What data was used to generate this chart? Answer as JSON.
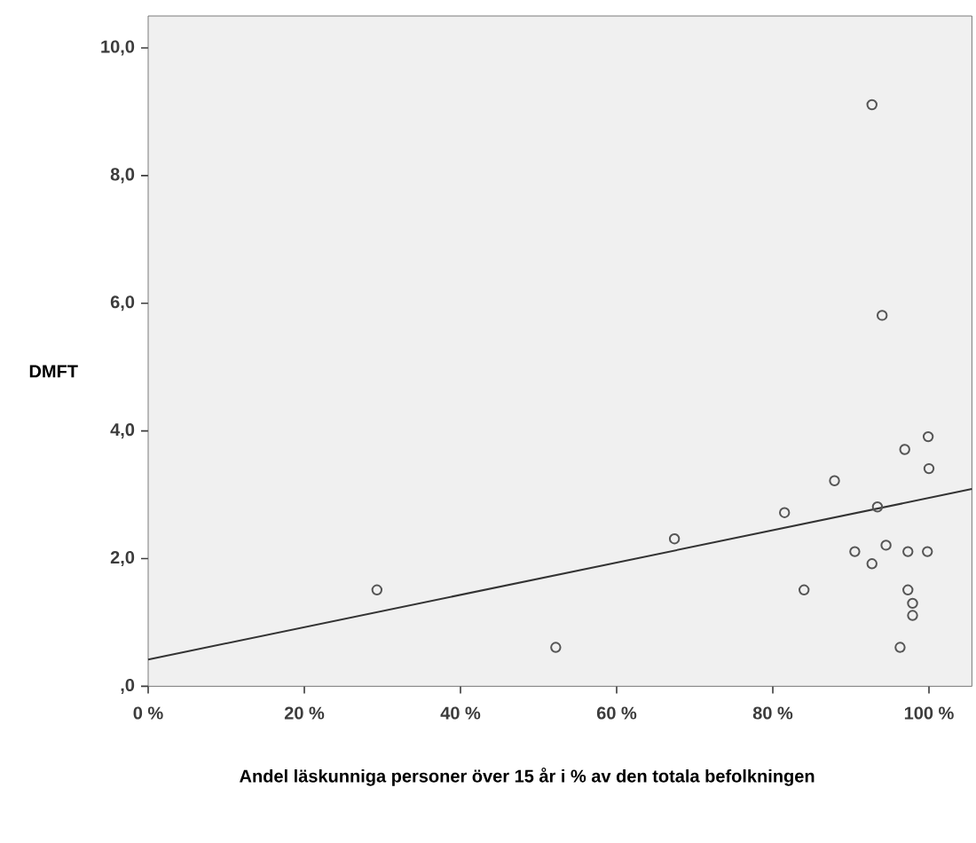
{
  "chart_data": {
    "type": "scatter",
    "xlabel": "Andel läskunniga personer över 15 år i % av den totala befolkningen",
    "ylabel": "DMFT",
    "xlim": [
      0,
      105.5
    ],
    "ylim": [
      0,
      10.5
    ],
    "xticks": [
      {
        "value": 0,
        "label": "0 %"
      },
      {
        "value": 20,
        "label": "20 %"
      },
      {
        "value": 40,
        "label": "40 %"
      },
      {
        "value": 60,
        "label": "60 %"
      },
      {
        "value": 80,
        "label": "80 %"
      },
      {
        "value": 100,
        "label": "100 %"
      }
    ],
    "yticks": [
      {
        "value": 0,
        "label": ",0"
      },
      {
        "value": 2,
        "label": "2,0"
      },
      {
        "value": 4,
        "label": "4,0"
      },
      {
        "value": 6,
        "label": "6,0"
      },
      {
        "value": 8,
        "label": "8,0"
      },
      {
        "value": 10,
        "label": "10,0"
      }
    ],
    "grid": false,
    "series": [
      {
        "marker": "circle",
        "color": "#555555",
        "x": [
          92.7,
          94.0,
          99.9,
          96.9,
          100.0,
          87.9,
          81.5,
          93.4,
          94.5,
          90.5,
          97.3,
          99.8,
          92.7,
          84.0,
          97.3,
          97.9,
          97.9,
          96.3,
          29.3,
          52.2,
          67.4
        ],
        "values": [
          9.11,
          5.81,
          3.91,
          3.71,
          3.41,
          3.22,
          2.72,
          2.81,
          2.21,
          2.11,
          2.11,
          2.11,
          1.92,
          1.51,
          1.51,
          1.3,
          1.11,
          0.61,
          1.51,
          0.61,
          2.31
        ]
      },
      {
        "type": "line",
        "marker": "none",
        "color": "#333333",
        "x": [
          0,
          105.5
        ],
        "values": [
          0.42,
          3.09
        ]
      }
    ]
  }
}
